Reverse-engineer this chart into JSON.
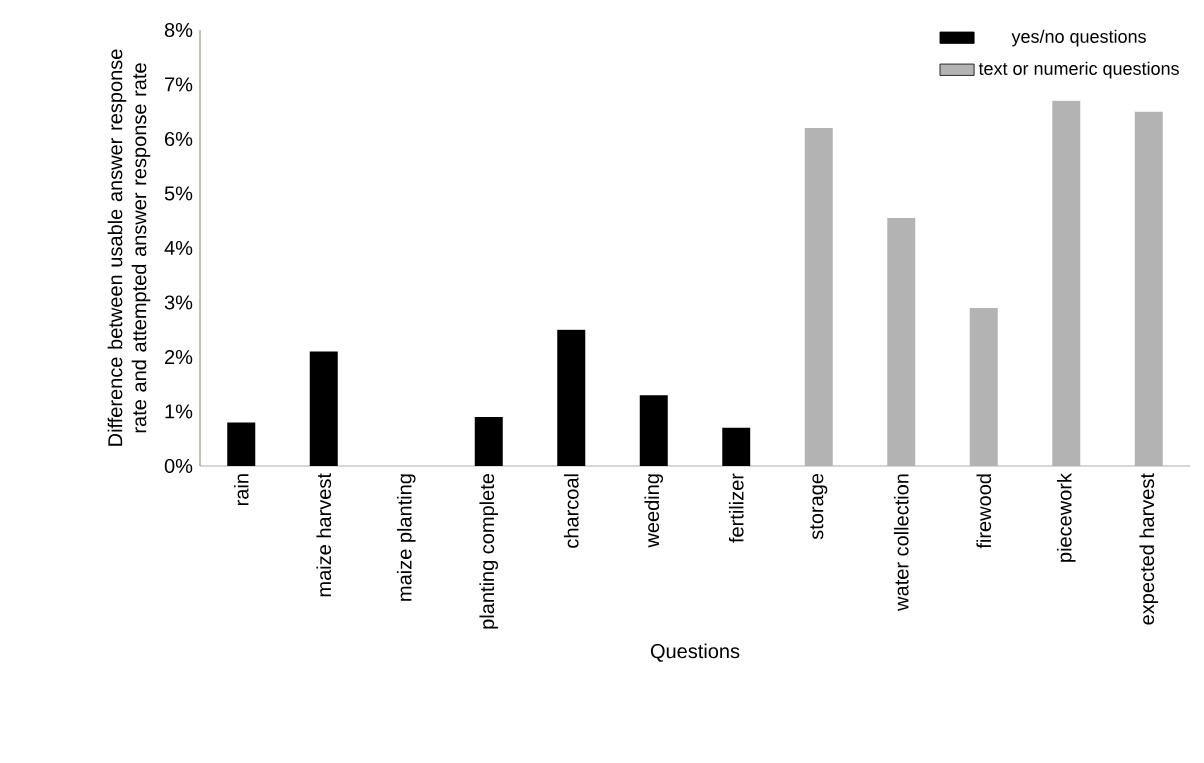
{
  "chart_data": {
    "type": "bar",
    "xlabel": "Questions",
    "ylabel": "Difference between usable answer response rate and attempted answer response rate",
    "categories": [
      "rain",
      "maize harvest",
      "maize planting",
      "planting complete",
      "charcoal",
      "weeding",
      "fertilizer",
      "storage",
      "water collection",
      "firewood",
      "piecework",
      "expected harvest"
    ],
    "series": [
      {
        "name": "yes/no questions",
        "color": "#000000",
        "values": [
          0.8,
          2.1,
          0,
          0.9,
          2.5,
          1.3,
          0.7,
          null,
          null,
          null,
          null,
          null
        ]
      },
      {
        "name": "text or numeric questions",
        "color": "#b3b3b3",
        "values": [
          null,
          null,
          null,
          null,
          null,
          null,
          null,
          6.2,
          4.55,
          2.9,
          6.7,
          6.5
        ]
      }
    ],
    "ylim": [
      0,
      8
    ],
    "yticks": [
      {
        "value": 0,
        "label": "0%"
      },
      {
        "value": 1,
        "label": "1%"
      },
      {
        "value": 2,
        "label": "2%"
      },
      {
        "value": 3,
        "label": "3%"
      },
      {
        "value": 4,
        "label": "4%"
      },
      {
        "value": 5,
        "label": "5%"
      },
      {
        "value": 6,
        "label": "6%"
      },
      {
        "value": 7,
        "label": "7%"
      },
      {
        "value": 8,
        "label": "8%"
      }
    ],
    "legend": "top right"
  }
}
